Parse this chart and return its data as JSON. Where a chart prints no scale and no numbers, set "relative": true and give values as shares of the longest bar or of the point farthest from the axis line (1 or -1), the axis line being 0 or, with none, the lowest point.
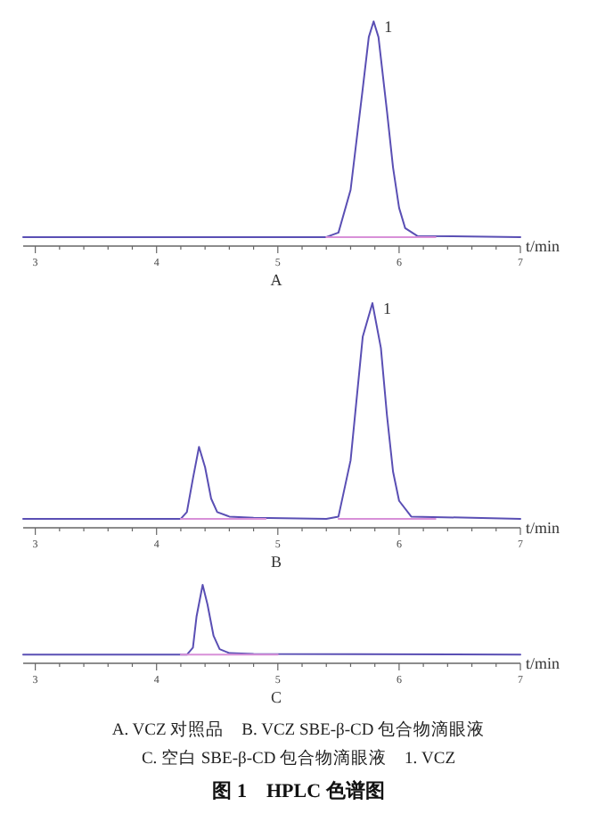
{
  "chart_data": [
    {
      "type": "line",
      "relative": true,
      "xlabel": "t/min",
      "xlim": [
        2.9,
        7
      ],
      "xticks": [
        3,
        {
          "value": 3.2,
          "label": null
        },
        {
          "value": 3.4,
          "label": null
        },
        {
          "value": 3.6,
          "label": null
        },
        {
          "value": 3.8,
          "label": null
        },
        4,
        {
          "value": 4.2,
          "label": null
        },
        {
          "value": 4.4,
          "label": null
        },
        {
          "value": 4.6,
          "label": null
        },
        {
          "value": 4.8,
          "label": null
        },
        5,
        {
          "value": 5.2,
          "label": null
        },
        {
          "value": 5.4,
          "label": null
        },
        {
          "value": 5.6,
          "label": null
        },
        {
          "value": 5.8,
          "label": null
        },
        6,
        {
          "value": 6.2,
          "label": null
        },
        {
          "value": 6.4,
          "label": null
        },
        {
          "value": 6.6,
          "label": null
        },
        {
          "value": 6.8,
          "label": null
        },
        7
      ],
      "tick_labels": "x",
      "annotations": [
        "A",
        {
          "text": "1",
          "x": 5.79,
          "y": 1
        }
      ],
      "series": [
        {
          "color": "#5a4fb4",
          "x": [
            2.9,
            4.8,
            5.4,
            5.5,
            5.6,
            5.7,
            5.75,
            5.79,
            5.83,
            5.9,
            5.95,
            6.0,
            6.05,
            6.15,
            7
          ],
          "values": [
            0.04,
            0.04,
            0.04,
            0.06,
            0.25,
            0.7,
            0.93,
            1,
            0.93,
            0.6,
            0.35,
            0.17,
            0.08,
            0.045,
            0.04
          ]
        },
        {
          "color": "#d890d8",
          "x": [
            5.4,
            6.3
          ],
          "values": [
            0.04,
            0.04
          ]
        }
      ]
    },
    {
      "type": "line",
      "relative": true,
      "xlabel": "t/min",
      "xlim": [
        2.9,
        7
      ],
      "xticks": [
        3,
        {
          "value": 3.2,
          "label": null
        },
        {
          "value": 3.4,
          "label": null
        },
        {
          "value": 3.6,
          "label": null
        },
        {
          "value": 3.8,
          "label": null
        },
        4,
        {
          "value": 4.2,
          "label": null
        },
        {
          "value": 4.4,
          "label": null
        },
        {
          "value": 4.6,
          "label": null
        },
        {
          "value": 4.8,
          "label": null
        },
        5,
        {
          "value": 5.2,
          "label": null
        },
        {
          "value": 5.4,
          "label": null
        },
        {
          "value": 5.6,
          "label": null
        },
        {
          "value": 5.8,
          "label": null
        },
        6,
        {
          "value": 6.2,
          "label": null
        },
        {
          "value": 6.4,
          "label": null
        },
        {
          "value": 6.6,
          "label": null
        },
        {
          "value": 6.8,
          "label": null
        },
        7
      ],
      "tick_labels": "x",
      "annotations": [
        "B",
        {
          "text": "1",
          "x": 5.78,
          "y": 1
        }
      ],
      "series": [
        {
          "color": "#5a4fb4",
          "x": [
            2.9,
            4.2,
            4.25,
            4.3,
            4.35,
            4.4,
            4.45,
            4.5,
            4.6,
            4.8,
            5.4,
            5.5,
            5.6,
            5.7,
            5.78,
            5.85,
            5.9,
            5.95,
            6.0,
            6.1,
            7
          ],
          "values": [
            0.04,
            0.04,
            0.07,
            0.22,
            0.36,
            0.27,
            0.13,
            0.07,
            0.05,
            0.045,
            0.04,
            0.05,
            0.3,
            0.85,
            1,
            0.8,
            0.5,
            0.25,
            0.12,
            0.05,
            0.04
          ]
        },
        {
          "color": "#d890d8",
          "x": [
            4.2,
            4.9
          ],
          "values": [
            0.04,
            0.04
          ]
        },
        {
          "color": "#d890d8",
          "x": [
            5.5,
            6.3
          ],
          "values": [
            0.04,
            0.04
          ]
        }
      ]
    },
    {
      "type": "line",
      "relative": true,
      "xlabel": "t/min",
      "xlim": [
        2.9,
        7
      ],
      "xticks": [
        3,
        {
          "value": 3.2,
          "label": null
        },
        {
          "value": 3.4,
          "label": null
        },
        {
          "value": 3.6,
          "label": null
        },
        {
          "value": 3.8,
          "label": null
        },
        4,
        {
          "value": 4.2,
          "label": null
        },
        {
          "value": 4.4,
          "label": null
        },
        {
          "value": 4.6,
          "label": null
        },
        {
          "value": 4.8,
          "label": null
        },
        5,
        {
          "value": 5.2,
          "label": null
        },
        {
          "value": 5.4,
          "label": null
        },
        {
          "value": 5.6,
          "label": null
        },
        {
          "value": 5.8,
          "label": null
        },
        6,
        {
          "value": 6.2,
          "label": null
        },
        {
          "value": 6.4,
          "label": null
        },
        {
          "value": 6.6,
          "label": null
        },
        {
          "value": 6.8,
          "label": null
        },
        7
      ],
      "tick_labels": "x",
      "annotations": [
        "C"
      ],
      "series": [
        {
          "color": "#5a4fb4",
          "x": [
            2.9,
            4.25,
            4.3,
            4.33,
            4.38,
            4.42,
            4.47,
            4.52,
            4.6,
            4.8,
            7
          ],
          "values": [
            0.11,
            0.11,
            0.2,
            0.6,
            1,
            0.75,
            0.35,
            0.18,
            0.13,
            0.12,
            0.11
          ]
        },
        {
          "color": "#d890d8",
          "x": [
            4.2,
            5.0
          ],
          "values": [
            0.11,
            0.11
          ]
        }
      ]
    },
    {
      "type": "other",
      "title": "图 1　HPLC 色谱图",
      "annotations": [
        "A. VCZ 对照品　B. VCZ SBE-β-CD 包合物滴眼液",
        "C. 空白 SBE-β-CD 包合物滴眼液　1. VCZ"
      ]
    }
  ]
}
